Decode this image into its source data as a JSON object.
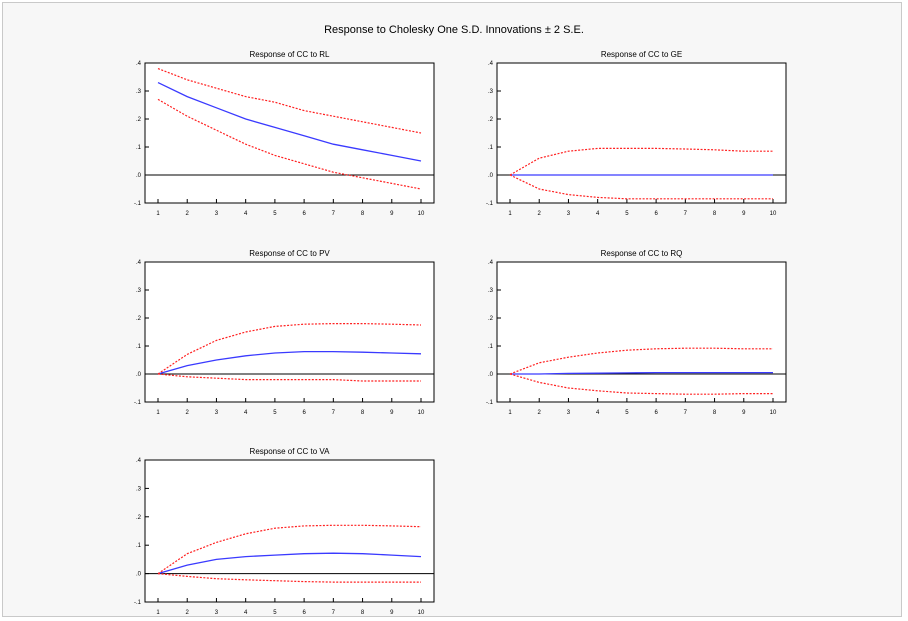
{
  "figure": {
    "title": "Response to Cholesky One S.D. Innovations ± 2 S.E."
  },
  "colors": {
    "response": "#3a3aff",
    "bands": "#ff2020",
    "zero_line": "#000000",
    "axis": "#000000",
    "panel_background": "#ffffff"
  },
  "chart_data": [
    {
      "type": "line",
      "title": "Response of CC to RL",
      "x": [
        1,
        2,
        3,
        4,
        5,
        6,
        7,
        8,
        9,
        10
      ],
      "ylim": [
        -0.1,
        0.4
      ],
      "yticks": [
        ".4",
        ".3",
        ".2",
        ".1",
        ".0",
        "-.1"
      ],
      "xticks": [
        "1",
        "2",
        "3",
        "4",
        "5",
        "6",
        "7",
        "8",
        "9",
        "10"
      ],
      "grid": false,
      "series": [
        {
          "role": "response",
          "values": [
            0.33,
            0.28,
            0.24,
            0.2,
            0.17,
            0.14,
            0.11,
            0.09,
            0.07,
            0.05
          ]
        },
        {
          "role": "upper",
          "values": [
            0.38,
            0.34,
            0.31,
            0.28,
            0.26,
            0.23,
            0.21,
            0.19,
            0.17,
            0.15
          ]
        },
        {
          "role": "lower",
          "values": [
            0.27,
            0.21,
            0.16,
            0.11,
            0.07,
            0.04,
            0.01,
            -0.01,
            -0.03,
            -0.05
          ]
        }
      ]
    },
    {
      "type": "line",
      "title": "Response of CC to GE",
      "x": [
        1,
        2,
        3,
        4,
        5,
        6,
        7,
        8,
        9,
        10
      ],
      "ylim": [
        -0.1,
        0.4
      ],
      "yticks": [
        ".4",
        ".3",
        ".2",
        ".1",
        ".0",
        "-.1"
      ],
      "xticks": [
        "1",
        "2",
        "3",
        "4",
        "5",
        "6",
        "7",
        "8",
        "9",
        "10"
      ],
      "grid": false,
      "series": [
        {
          "role": "response",
          "values": [
            0.0,
            0.0,
            0.0,
            0.0,
            0.0,
            0.0,
            0.0,
            0.0,
            0.0,
            0.0
          ]
        },
        {
          "role": "upper",
          "values": [
            0.0,
            0.06,
            0.085,
            0.095,
            0.095,
            0.095,
            0.093,
            0.09,
            0.085,
            0.085
          ]
        },
        {
          "role": "lower",
          "values": [
            0.0,
            -0.05,
            -0.07,
            -0.08,
            -0.085,
            -0.085,
            -0.085,
            -0.085,
            -0.085,
            -0.085
          ]
        }
      ]
    },
    {
      "type": "line",
      "title": "Response of CC to PV",
      "x": [
        1,
        2,
        3,
        4,
        5,
        6,
        7,
        8,
        9,
        10
      ],
      "ylim": [
        -0.1,
        0.4
      ],
      "yticks": [
        ".4",
        ".3",
        ".2",
        ".1",
        ".0",
        "-.1"
      ],
      "xticks": [
        "1",
        "2",
        "3",
        "4",
        "5",
        "6",
        "7",
        "8",
        "9",
        "10"
      ],
      "grid": false,
      "series": [
        {
          "role": "response",
          "values": [
            0.0,
            0.03,
            0.05,
            0.065,
            0.075,
            0.08,
            0.08,
            0.078,
            0.075,
            0.072
          ]
        },
        {
          "role": "upper",
          "values": [
            0.0,
            0.07,
            0.12,
            0.15,
            0.17,
            0.178,
            0.18,
            0.18,
            0.178,
            0.175
          ]
        },
        {
          "role": "lower",
          "values": [
            0.0,
            -0.01,
            -0.015,
            -0.02,
            -0.02,
            -0.02,
            -0.02,
            -0.025,
            -0.025,
            -0.025
          ]
        }
      ]
    },
    {
      "type": "line",
      "title": "Response of CC to RQ",
      "x": [
        1,
        2,
        3,
        4,
        5,
        6,
        7,
        8,
        9,
        10
      ],
      "ylim": [
        -0.1,
        0.4
      ],
      "yticks": [
        ".4",
        ".3",
        ".2",
        ".1",
        ".0",
        "-.1"
      ],
      "xticks": [
        "1",
        "2",
        "3",
        "4",
        "5",
        "6",
        "7",
        "8",
        "9",
        "10"
      ],
      "grid": false,
      "series": [
        {
          "role": "response",
          "values": [
            0.0,
            0.0,
            0.002,
            0.003,
            0.004,
            0.005,
            0.005,
            0.005,
            0.005,
            0.005
          ]
        },
        {
          "role": "upper",
          "values": [
            0.0,
            0.04,
            0.06,
            0.075,
            0.085,
            0.09,
            0.092,
            0.092,
            0.09,
            0.09
          ]
        },
        {
          "role": "lower",
          "values": [
            0.0,
            -0.03,
            -0.05,
            -0.06,
            -0.068,
            -0.07,
            -0.072,
            -0.072,
            -0.07,
            -0.07
          ]
        }
      ]
    },
    {
      "type": "line",
      "title": "Response of CC to VA",
      "x": [
        1,
        2,
        3,
        4,
        5,
        6,
        7,
        8,
        9,
        10
      ],
      "ylim": [
        -0.1,
        0.4
      ],
      "yticks": [
        ".4",
        ".3",
        ".2",
        ".1",
        ".0",
        "-.1"
      ],
      "xticks": [
        "1",
        "2",
        "3",
        "4",
        "5",
        "6",
        "7",
        "8",
        "9",
        "10"
      ],
      "grid": false,
      "series": [
        {
          "role": "response",
          "values": [
            0.0,
            0.03,
            0.05,
            0.06,
            0.065,
            0.07,
            0.072,
            0.07,
            0.065,
            0.06
          ]
        },
        {
          "role": "upper",
          "values": [
            0.0,
            0.07,
            0.11,
            0.14,
            0.16,
            0.168,
            0.17,
            0.17,
            0.168,
            0.165
          ]
        },
        {
          "role": "lower",
          "values": [
            0.0,
            -0.01,
            -0.018,
            -0.022,
            -0.025,
            -0.028,
            -0.03,
            -0.03,
            -0.03,
            -0.03
          ]
        }
      ]
    }
  ]
}
